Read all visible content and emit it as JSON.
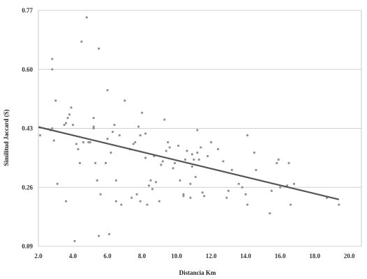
{
  "chart_data": {
    "type": "scatter",
    "title": "",
    "xlabel": "Distancia Km",
    "ylabel": "Similitud Jaccard (S)",
    "xlim": [
      2.0,
      20.7
    ],
    "ylim": [
      0.09,
      0.77
    ],
    "x_ticks": [
      "2.0",
      "4.0",
      "6.0",
      "8.0",
      "10.0",
      "12.0",
      "14.0",
      "16.0",
      "18.0",
      "20.0"
    ],
    "x_tick_values": [
      2,
      4,
      6,
      8,
      10,
      12,
      14,
      16,
      18,
      20
    ],
    "y_ticks": [
      "0.09",
      "0.26",
      "0.43",
      "0.60",
      "0.77"
    ],
    "y_tick_values": [
      0.09,
      0.26,
      0.43,
      0.6,
      0.77
    ],
    "grid": "horizontal",
    "legend": "none",
    "colors": {
      "points": "#909090",
      "trend": "#555555",
      "grid": "#d0d0d0"
    },
    "points": [
      [
        2.1,
        0.41
      ],
      [
        2.7,
        0.425
      ],
      [
        2.8,
        0.43
      ],
      [
        2.8,
        0.6
      ],
      [
        2.8,
        0.63
      ],
      [
        2.9,
        0.395
      ],
      [
        3.0,
        0.51
      ],
      [
        3.1,
        0.27
      ],
      [
        3.5,
        0.44
      ],
      [
        3.6,
        0.22
      ],
      [
        3.6,
        0.445
      ],
      [
        3.7,
        0.46
      ],
      [
        3.8,
        0.47
      ],
      [
        3.9,
        0.49
      ],
      [
        4.0,
        0.44
      ],
      [
        4.1,
        0.105
      ],
      [
        4.2,
        0.385
      ],
      [
        4.3,
        0.37
      ],
      [
        4.4,
        0.33
      ],
      [
        4.5,
        0.68
      ],
      [
        4.6,
        0.39
      ],
      [
        4.8,
        0.75
      ],
      [
        4.9,
        0.39
      ],
      [
        5.0,
        0.39
      ],
      [
        5.2,
        0.43
      ],
      [
        5.2,
        0.435
      ],
      [
        5.2,
        0.46
      ],
      [
        5.3,
        0.33
      ],
      [
        5.4,
        0.28
      ],
      [
        5.5,
        0.66
      ],
      [
        5.5,
        0.12
      ],
      [
        5.6,
        0.24
      ],
      [
        5.9,
        0.33
      ],
      [
        6.0,
        0.4
      ],
      [
        6.0,
        0.54
      ],
      [
        6.1,
        0.125
      ],
      [
        6.2,
        0.36
      ],
      [
        6.3,
        0.42
      ],
      [
        6.4,
        0.44
      ],
      [
        6.5,
        0.22
      ],
      [
        6.5,
        0.28
      ],
      [
        6.7,
        0.41
      ],
      [
        6.8,
        0.21
      ],
      [
        7.0,
        0.51
      ],
      [
        7.3,
        0.37
      ],
      [
        7.4,
        0.23
      ],
      [
        7.5,
        0.385
      ],
      [
        7.6,
        0.39
      ],
      [
        7.7,
        0.24
      ],
      [
        7.8,
        0.435
      ],
      [
        7.9,
        0.22
      ],
      [
        7.9,
        0.41
      ],
      [
        8.0,
        0.475
      ],
      [
        8.2,
        0.415
      ],
      [
        8.2,
        0.345
      ],
      [
        8.3,
        0.21
      ],
      [
        8.4,
        0.265
      ],
      [
        8.5,
        0.28
      ],
      [
        8.6,
        0.255
      ],
      [
        8.7,
        0.35
      ],
      [
        8.8,
        0.275
      ],
      [
        9.0,
        0.22
      ],
      [
        9.1,
        0.325
      ],
      [
        9.2,
        0.335
      ],
      [
        9.3,
        0.455
      ],
      [
        9.4,
        0.365
      ],
      [
        9.5,
        0.39
      ],
      [
        9.6,
        0.375
      ],
      [
        9.8,
        0.315
      ],
      [
        9.9,
        0.33
      ],
      [
        10.1,
        0.38
      ],
      [
        10.2,
        0.28
      ],
      [
        10.4,
        0.24
      ],
      [
        10.4,
        0.235
      ],
      [
        10.5,
        0.34
      ],
      [
        10.6,
        0.365
      ],
      [
        10.8,
        0.23
      ],
      [
        10.8,
        0.27
      ],
      [
        10.9,
        0.32
      ],
      [
        10.9,
        0.355
      ],
      [
        11.0,
        0.34
      ],
      [
        11.1,
        0.29
      ],
      [
        11.2,
        0.36
      ],
      [
        11.2,
        0.425
      ],
      [
        11.3,
        0.34
      ],
      [
        11.4,
        0.375
      ],
      [
        11.5,
        0.245
      ],
      [
        11.6,
        0.235
      ],
      [
        11.8,
        0.35
      ],
      [
        12.0,
        0.39
      ],
      [
        12.4,
        0.37
      ],
      [
        12.7,
        0.335
      ],
      [
        12.9,
        0.23
      ],
      [
        13.0,
        0.25
      ],
      [
        13.2,
        0.31
      ],
      [
        13.6,
        0.27
      ],
      [
        13.8,
        0.26
      ],
      [
        14.0,
        0.24
      ],
      [
        14.1,
        0.21
      ],
      [
        14.1,
        0.41
      ],
      [
        14.5,
        0.36
      ],
      [
        14.6,
        0.31
      ],
      [
        15.4,
        0.185
      ],
      [
        15.5,
        0.25
      ],
      [
        15.8,
        0.33
      ],
      [
        15.9,
        0.34
      ],
      [
        16.0,
        0.26
      ],
      [
        16.4,
        0.265
      ],
      [
        16.5,
        0.33
      ],
      [
        16.6,
        0.21
      ],
      [
        16.8,
        0.27
      ],
      [
        18.7,
        0.23
      ],
      [
        19.4,
        0.21
      ]
    ],
    "trendline": {
      "x": [
        2.0,
        19.4
      ],
      "y": [
        0.434,
        0.225
      ]
    }
  }
}
